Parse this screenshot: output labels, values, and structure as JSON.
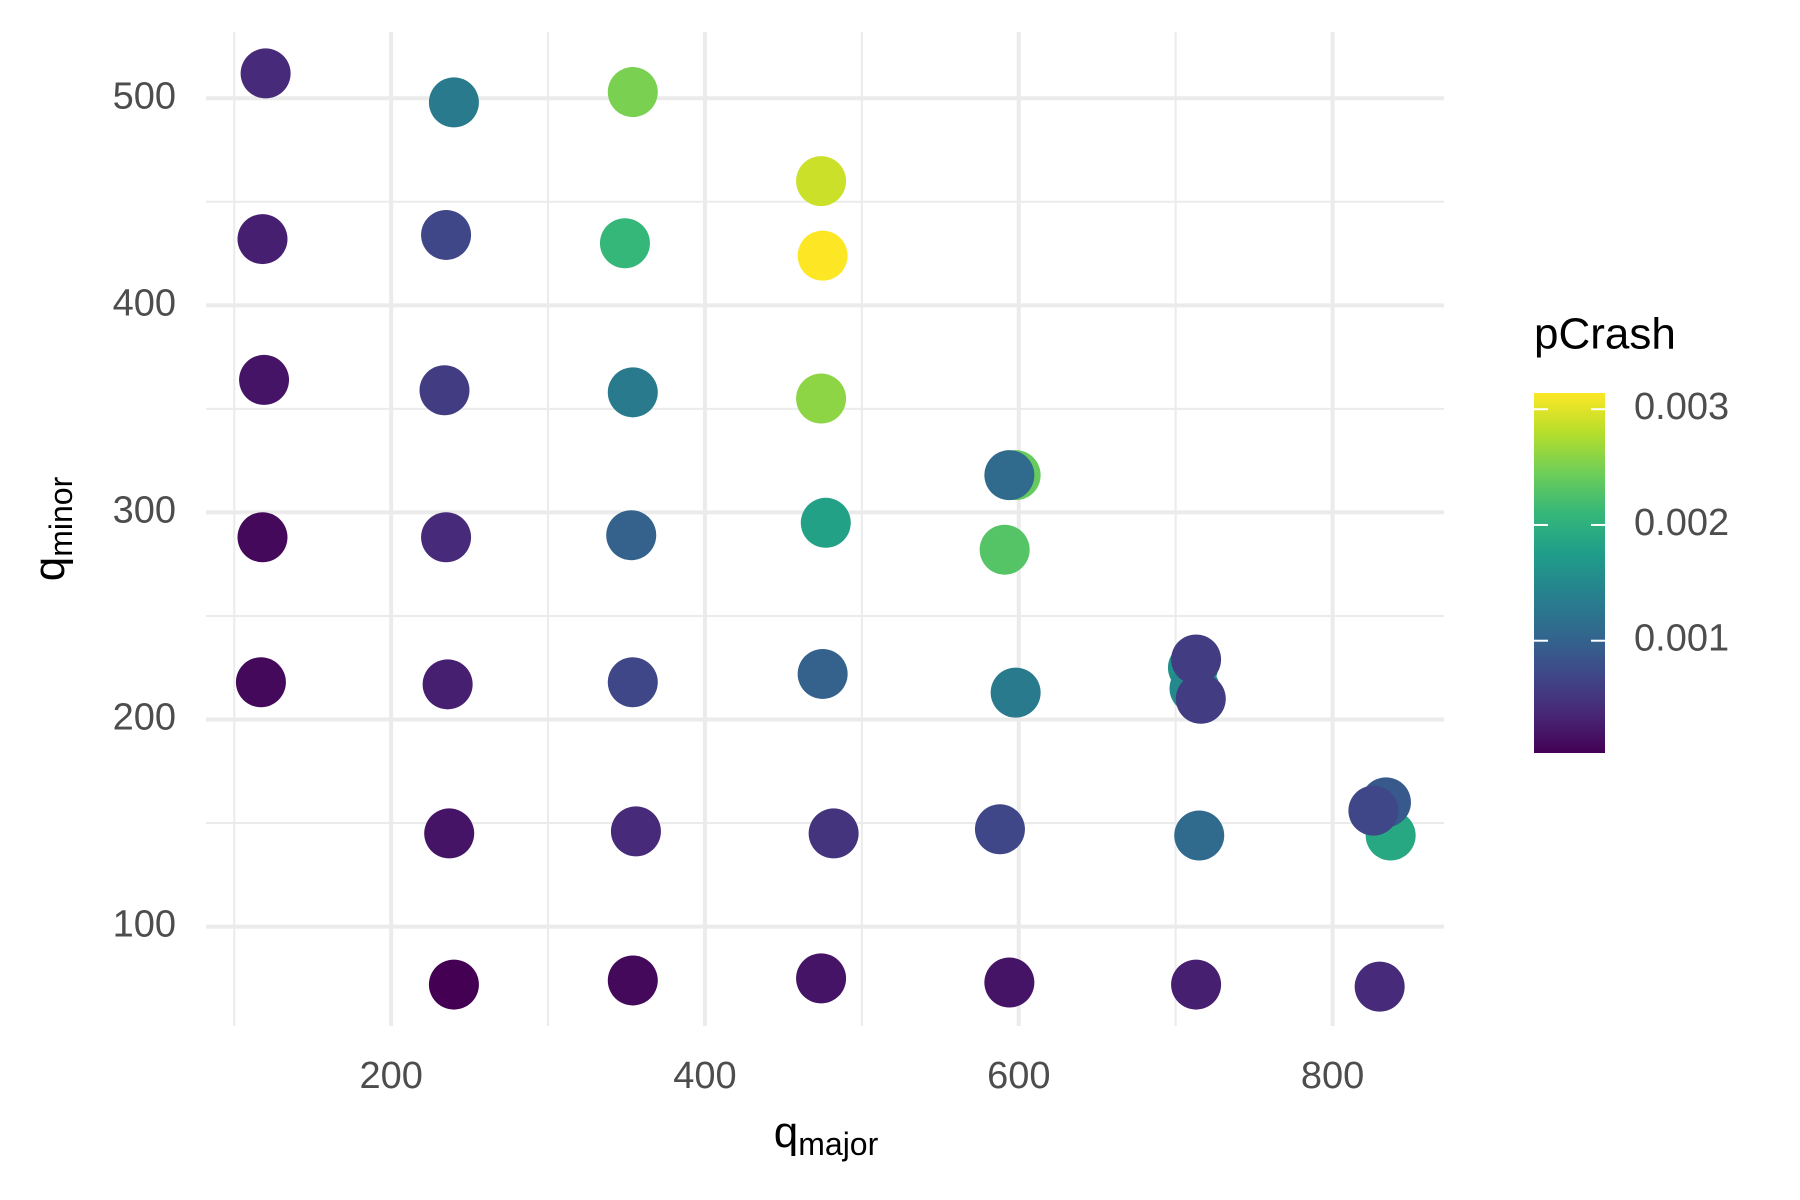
{
  "chart_data": {
    "type": "scatter",
    "x_label": {
      "base": "q",
      "sub": "major"
    },
    "y_label": {
      "base": "q",
      "sub": "minor"
    },
    "color_label": "pCrash",
    "xlim": [
      82,
      871
    ],
    "ylim": [
      52,
      532
    ],
    "xticks": [
      200,
      400,
      600,
      800
    ],
    "yticks": [
      100,
      200,
      300,
      400,
      500
    ],
    "xminor": [
      100,
      300,
      500,
      700
    ],
    "yminor": [
      50,
      150,
      250,
      350,
      450
    ],
    "grid": true,
    "clim": [
      3e-05,
      0.00314
    ],
    "cticks": [
      0.001,
      0.002,
      0.003
    ],
    "colormap": [
      "#440154",
      "#482878",
      "#3e4989",
      "#31688e",
      "#26828e",
      "#1f9e89",
      "#35b779",
      "#6ece58",
      "#b5de2b",
      "#fde725"
    ],
    "x": [
      120,
      240,
      354,
      474,
      475,
      118,
      235,
      349,
      119,
      234,
      354,
      474,
      598,
      594,
      591,
      477,
      353,
      235,
      118,
      117,
      236,
      354,
      475,
      598,
      711,
      712,
      716,
      713,
      237,
      356,
      482,
      588,
      715,
      837,
      834,
      826,
      240,
      354,
      474,
      594,
      713,
      830
    ],
    "y": [
      512,
      498,
      503,
      460,
      424,
      432,
      434,
      430,
      364,
      359,
      358,
      355,
      318,
      318,
      282,
      295,
      289,
      288,
      288,
      218,
      217,
      218,
      222,
      213,
      225,
      215,
      210,
      229,
      145,
      146,
      145,
      147,
      144,
      144,
      160,
      156,
      72,
      74,
      75,
      73,
      72,
      71
    ],
    "color_values": [
      0.0004,
      0.0013,
      0.0025,
      0.0029,
      0.00314,
      0.0003,
      0.0007,
      0.0021,
      0.0002,
      0.0006,
      0.0013,
      0.0026,
      0.0024,
      0.0011,
      0.0023,
      0.0018,
      0.001,
      0.0004,
      0.0001,
      0.0001,
      0.0003,
      0.0007,
      0.001,
      0.0013,
      0.0016,
      0.0015,
      0.0006,
      0.0006,
      0.0002,
      0.0004,
      0.0005,
      0.0007,
      0.0011,
      0.0019,
      0.0009,
      0.0007,
      3e-05,
      0.0001,
      0.0002,
      0.0002,
      0.0003,
      0.0004
    ]
  }
}
